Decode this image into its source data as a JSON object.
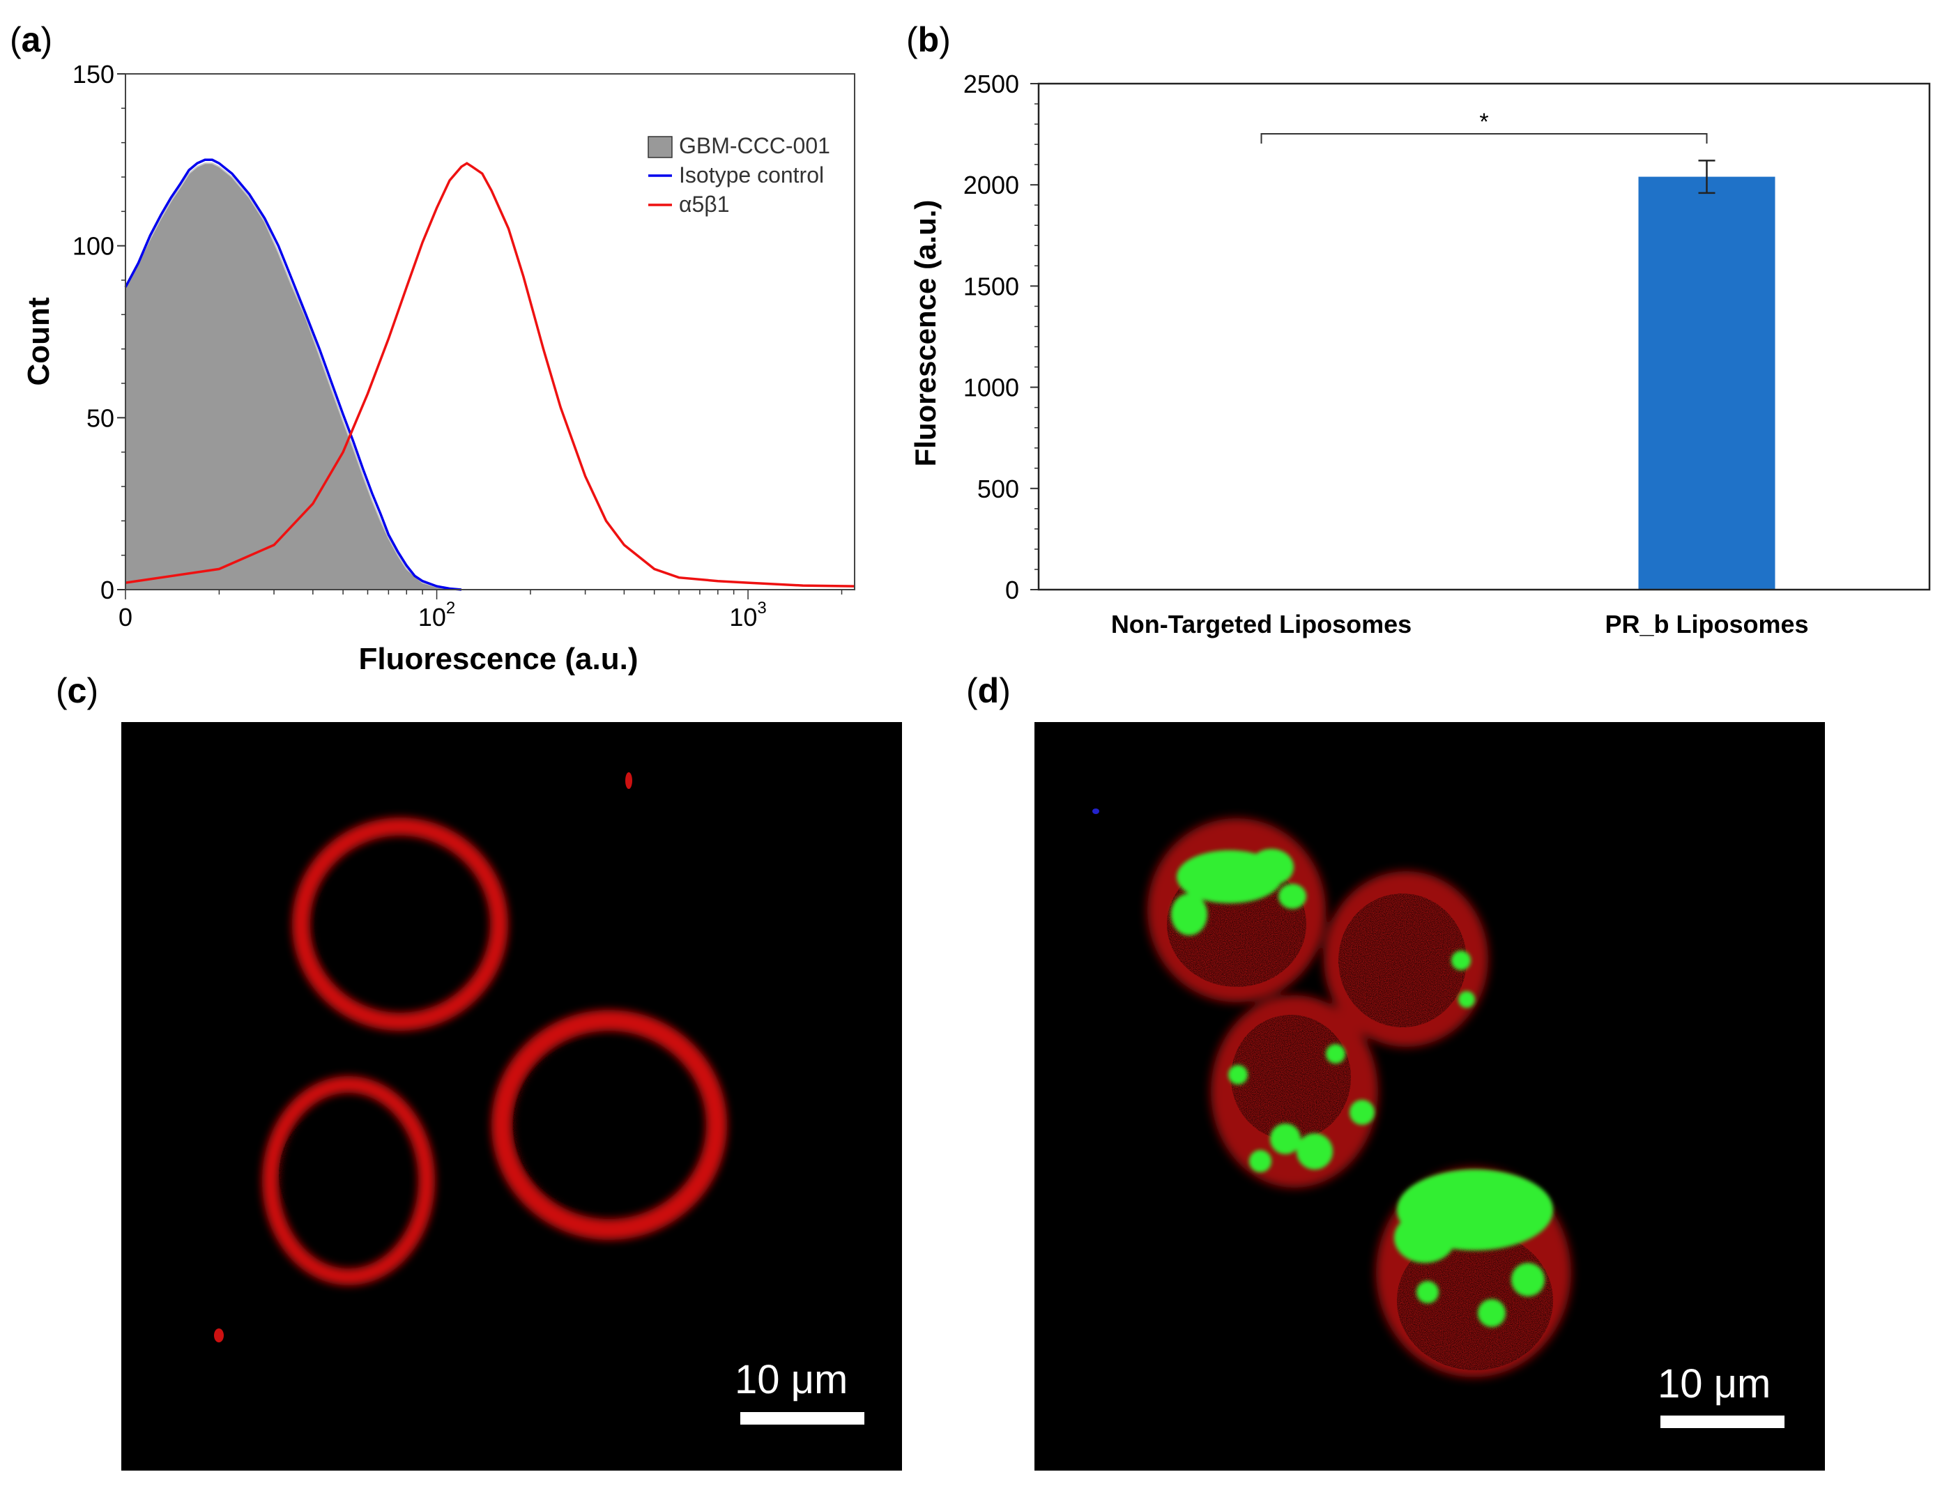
{
  "panels": {
    "a": "(a)",
    "b": "(b)",
    "c": "(c)",
    "d": "(d)"
  },
  "chart_data": [
    {
      "type": "histogram",
      "panel": "a",
      "xlabel": "Fluorescence (a.u.)",
      "ylabel": "Count",
      "xscale": "log",
      "xlim": [
        10,
        2200
      ],
      "ylim": [
        0,
        150
      ],
      "yticks": [
        "0",
        "50",
        "100",
        "150"
      ],
      "xticks": [
        {
          "label": "0",
          "value": 10
        },
        {
          "label": "10",
          "sup": "2",
          "value": 100
        },
        {
          "label": "10",
          "sup": "3",
          "value": 1000
        }
      ],
      "legend": {
        "placement": "top-right",
        "entries": [
          "GBM-CCC-001",
          "Isotype control",
          "α5β1"
        ]
      },
      "colors": {
        "gbm": "#999999",
        "isotype": "#0000ee",
        "a5b1": "#ee1111"
      },
      "series": [
        {
          "name": "GBM-CCC-001",
          "style": "filled",
          "x": [
            10,
            11,
            12,
            13,
            14,
            15,
            16,
            17,
            18,
            19,
            20,
            22,
            25,
            28,
            31,
            34,
            38,
            42,
            46,
            50,
            54,
            58,
            62,
            66,
            70,
            75,
            80,
            85,
            90,
            100,
            110,
            120
          ],
          "y": [
            88,
            95,
            102,
            108,
            113,
            117,
            121,
            123,
            124,
            124,
            123,
            120,
            114,
            107,
            98,
            89,
            79,
            68,
            58,
            49,
            41,
            33,
            26,
            20,
            15,
            10,
            6,
            4,
            2,
            0.8,
            0.3,
            0
          ]
        },
        {
          "name": "Isotype control",
          "style": "line",
          "x": [
            10,
            11,
            12,
            13,
            14,
            15,
            16,
            17,
            18,
            19,
            20,
            22,
            25,
            28,
            31,
            34,
            38,
            42,
            46,
            50,
            54,
            58,
            62,
            66,
            70,
            75,
            80,
            85,
            90,
            100,
            110,
            120
          ],
          "y": [
            88,
            95,
            103,
            109,
            114,
            118,
            122,
            124,
            125,
            125,
            124,
            121,
            115,
            108,
            100,
            91,
            80,
            70,
            60,
            51,
            43,
            35,
            28,
            22,
            16,
            11,
            7,
            4,
            2.5,
            1,
            0.3,
            0
          ]
        },
        {
          "name": "α5β1",
          "style": "line",
          "x": [
            10,
            20,
            30,
            40,
            50,
            60,
            70,
            80,
            90,
            100,
            110,
            120,
            125,
            130,
            140,
            150,
            170,
            190,
            220,
            250,
            300,
            350,
            400,
            500,
            600,
            800,
            1000,
            1500,
            2200
          ],
          "y": [
            2,
            6,
            13,
            25,
            40,
            57,
            73,
            88,
            101,
            111,
            119,
            123,
            124,
            123,
            121,
            116,
            105,
            91,
            70,
            53,
            33,
            20,
            13,
            6,
            3.5,
            2.5,
            2,
            1.2,
            1
          ]
        }
      ]
    },
    {
      "type": "bar",
      "panel": "b",
      "ylabel": "Fluorescence (a.u.)",
      "xlabel": "",
      "ylim": [
        0,
        2500
      ],
      "yticks": [
        "0",
        "500",
        "1000",
        "1500",
        "2000",
        "2500"
      ],
      "categories": [
        "Non-Targeted Liposomes",
        "PR_b Liposomes"
      ],
      "values": [
        0,
        2040
      ],
      "errors": [
        0,
        80
      ],
      "significance": "*",
      "bar_color": "#1f72c8"
    }
  ],
  "images": {
    "c": {
      "description": "",
      "scale_bar_label": "10 μm"
    },
    "d": {
      "description": "",
      "scale_bar_label": "10 μm"
    }
  }
}
